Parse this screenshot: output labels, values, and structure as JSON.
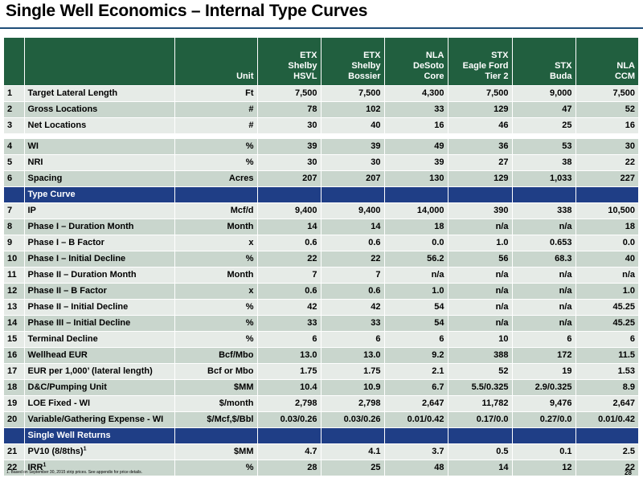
{
  "title": "Single Well Economics – Internal Type Curves",
  "columns": {
    "unit": "Unit",
    "areas": [
      {
        "line1": "ETX",
        "line2": "Shelby",
        "line3": "HSVL"
      },
      {
        "line1": "ETX",
        "line2": "Shelby",
        "line3": "Bossier"
      },
      {
        "line1": "NLA",
        "line2": "DeSoto",
        "line3": "Core"
      },
      {
        "line1": "STX",
        "line2": "Eagle Ford",
        "line3": "Tier 2"
      },
      {
        "line1": "",
        "line2": "STX",
        "line3": "Buda"
      },
      {
        "line1": "",
        "line2": "NLA",
        "line3": "CCM"
      }
    ]
  },
  "rows_a": [
    {
      "n": "1",
      "label": "Target Lateral Length",
      "unit": "Ft",
      "v": [
        "7,500",
        "7,500",
        "4,300",
        "7,500",
        "9,000",
        "7,500"
      ]
    },
    {
      "n": "2",
      "label": "Gross Locations",
      "unit": "#",
      "v": [
        "78",
        "102",
        "33",
        "129",
        "47",
        "52"
      ]
    },
    {
      "n": "3",
      "label": "Net Locations",
      "unit": "#",
      "v": [
        "30",
        "40",
        "16",
        "46",
        "25",
        "16"
      ]
    }
  ],
  "rows_b": [
    {
      "n": "4",
      "label": "WI",
      "unit": "%",
      "v": [
        "39",
        "39",
        "49",
        "36",
        "53",
        "30"
      ]
    },
    {
      "n": "5",
      "label": "NRI",
      "unit": "%",
      "v": [
        "30",
        "30",
        "39",
        "27",
        "38",
        "22"
      ]
    },
    {
      "n": "6",
      "label": "Spacing",
      "unit": "Acres",
      "v": [
        "207",
        "207",
        "130",
        "129",
        "1,033",
        "227"
      ]
    }
  ],
  "section_type_curve": "Type Curve",
  "rows_c": [
    {
      "n": "7",
      "label": "IP",
      "unit": "Mcf/d",
      "v": [
        "9,400",
        "9,400",
        "14,000",
        "390",
        "338",
        "10,500"
      ]
    },
    {
      "n": "8",
      "label": "Phase I – Duration Month",
      "unit": "Month",
      "v": [
        "14",
        "14",
        "18",
        "n/a",
        "n/a",
        "18"
      ]
    },
    {
      "n": "9",
      "label": "Phase I – B Factor",
      "unit": "x",
      "v": [
        "0.6",
        "0.6",
        "0.0",
        "1.0",
        "0.653",
        "0.0"
      ]
    },
    {
      "n": "10",
      "label": "Phase I – Initial Decline",
      "unit": "%",
      "v": [
        "22",
        "22",
        "56.2",
        "56",
        "68.3",
        "40"
      ]
    },
    {
      "n": "11",
      "label": "Phase II – Duration Month",
      "unit": "Month",
      "v": [
        "7",
        "7",
        "n/a",
        "n/a",
        "n/a",
        "n/a"
      ]
    },
    {
      "n": "12",
      "label": "Phase II – B Factor",
      "unit": "x",
      "v": [
        "0.6",
        "0.6",
        "1.0",
        "n/a",
        "n/a",
        "1.0"
      ]
    },
    {
      "n": "13",
      "label": "Phase II –  Initial Decline",
      "unit": "%",
      "v": [
        "42",
        "42",
        "54",
        "n/a",
        "n/a",
        "45.25"
      ]
    },
    {
      "n": "14",
      "label": "Phase III – Initial Decline",
      "unit": "%",
      "v": [
        "33",
        "33",
        "54",
        "n/a",
        "n/a",
        "45.25"
      ]
    },
    {
      "n": "15",
      "label": "Terminal Decline",
      "unit": "%",
      "v": [
        "6",
        "6",
        "6",
        "10",
        "6",
        "6"
      ]
    },
    {
      "n": "16",
      "label": "Wellhead EUR",
      "unit": "Bcf/Mbo",
      "v": [
        "13.0",
        "13.0",
        "9.2",
        "388",
        "172",
        "11.5"
      ]
    },
    {
      "n": "17",
      "label": "EUR per 1,000’ (lateral length)",
      "unit": "Bcf or Mbo",
      "v": [
        "1.75",
        "1.75",
        "2.1",
        "52",
        "19",
        "1.53"
      ]
    },
    {
      "n": "18",
      "label": "D&C/Pumping Unit",
      "unit": "$MM",
      "v": [
        "10.4",
        "10.9",
        "6.7",
        "5.5/0.325",
        "2.9/0.325",
        "8.9"
      ]
    },
    {
      "n": "19",
      "label": "LOE Fixed - WI",
      "unit": "$/month",
      "v": [
        "2,798",
        "2,798",
        "2,647",
        "11,782",
        "9,476",
        "2,647"
      ]
    },
    {
      "n": "20",
      "label": "Variable/Gathering Expense - WI",
      "unit": "$/Mcf,$/Bbl",
      "v": [
        "0.03/0.26",
        "0.03/0.26",
        "0.01/0.42",
        "0.17/0.0",
        "0.27/0.0",
        "0.01/0.42"
      ]
    }
  ],
  "section_returns": "Single Well Returns",
  "rows_d": [
    {
      "n": "21",
      "label": "PV10 (8/8ths)",
      "sup": "1",
      "unit": "$MM",
      "v": [
        "4.7",
        "4.1",
        "3.7",
        "0.5",
        "0.1",
        "2.5"
      ]
    },
    {
      "n": "22",
      "label": "IRR",
      "sup": "1",
      "unit": "%",
      "v": [
        "28",
        "25",
        "48",
        "14",
        "12",
        "22"
      ]
    }
  ],
  "footnote": "1.  Based on September 30, 2015 strip prices.  See appendix for price details.",
  "page_number": "28",
  "colors": {
    "header_green": "#215f3f",
    "section_blue": "#1f3e86",
    "row_light": "#e6ebe7",
    "row_dark": "#c9d6cd",
    "title_rule": "#1f4e79"
  }
}
